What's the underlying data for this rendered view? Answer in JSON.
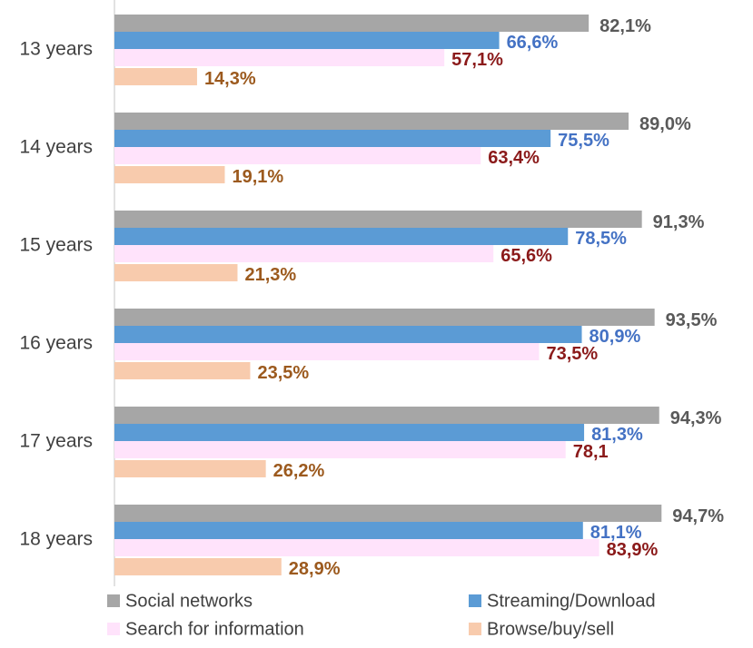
{
  "chart_data": {
    "type": "bar",
    "orientation": "horizontal",
    "categories": [
      "13 years",
      "14 years",
      "15 years",
      "16 years",
      "17 years",
      "18 years"
    ],
    "series": [
      {
        "name": "Social networks",
        "color": "#a6a6a6",
        "label_color": "#595959",
        "values": [
          82.1,
          89.0,
          91.3,
          93.5,
          94.3,
          94.7
        ],
        "value_labels": [
          "82,1%",
          "89,0%",
          "91,3%",
          "93,5%",
          "94,3%",
          "94,7%"
        ]
      },
      {
        "name": "Streaming/Download",
        "color": "#5b9bd5",
        "label_color": "#4472c4",
        "values": [
          66.6,
          75.5,
          78.5,
          80.9,
          81.3,
          81.1
        ],
        "value_labels": [
          "66,6%",
          "75,5%",
          "78,5%",
          "80,9%",
          "81,3%",
          "81,1%"
        ]
      },
      {
        "name": "Search for information",
        "color": "#ffe3fb",
        "label_color": "#8b1a1a",
        "values": [
          57.1,
          63.4,
          65.6,
          73.5,
          78.1,
          83.9
        ],
        "value_labels": [
          "57,1%",
          "63,4%",
          "65,6%",
          "73,5%",
          "78,1",
          "83,9%"
        ]
      },
      {
        "name": "Browse/buy/sell",
        "color": "#f8cbad",
        "label_color": "#9c5a1e",
        "values": [
          14.3,
          19.1,
          21.3,
          23.5,
          26.2,
          28.9
        ],
        "value_labels": [
          "14,3%",
          "19,1%",
          "21,3%",
          "23,5%",
          "26,2%",
          "28,9%"
        ]
      }
    ]
  }
}
